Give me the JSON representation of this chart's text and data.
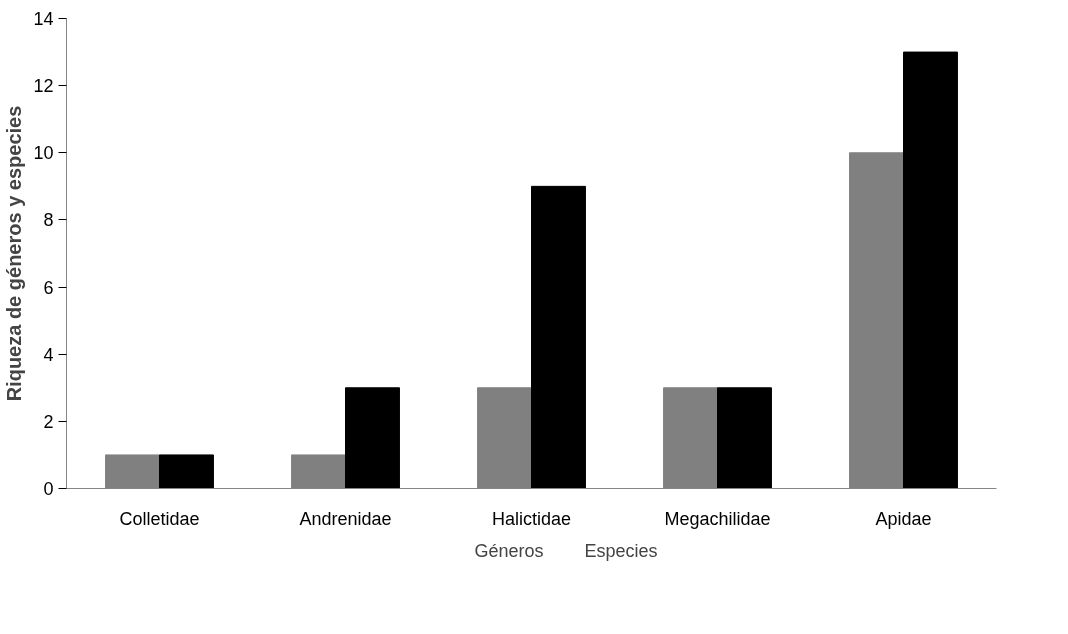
{
  "chart_data": {
    "type": "bar",
    "ylabel": "Riqueza de géneros y especies",
    "categories": [
      "Colletidae",
      "Andrenidae",
      "Halictidae",
      "Megachilidae",
      "Apidae"
    ],
    "series": [
      {
        "name": "Géneros",
        "color": "#808080",
        "values": [
          1,
          1,
          3,
          3,
          10
        ]
      },
      {
        "name": "Especies",
        "color": "#000000",
        "values": [
          1,
          3,
          9,
          3,
          13
        ]
      }
    ],
    "ylim": [
      0,
      14
    ],
    "yticks": [
      0,
      2,
      4,
      6,
      8,
      10,
      12,
      14
    ],
    "grid": false,
    "legend": "bottom"
  }
}
